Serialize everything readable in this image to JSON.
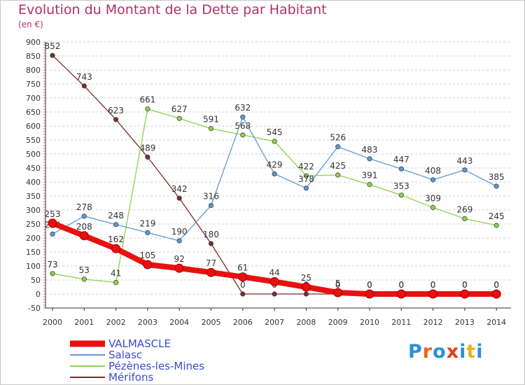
{
  "title": "Evolution du Montant de la Dette par Habitant",
  "subtitle": "(en €)",
  "logo": {
    "text": "Proxiti",
    "colors": [
      "#2a8fd8",
      "#e9651c",
      "#2a8fd8",
      "#e93b1c",
      "#2a8fd8",
      "#f0b020",
      "#2a8fd8"
    ]
  },
  "chart_data": {
    "type": "line",
    "x": [
      "2000",
      "2001",
      "2002",
      "2003",
      "2004",
      "2005",
      "2006",
      "2007",
      "2008",
      "2009",
      "2010",
      "2011",
      "2012",
      "2013",
      "2014"
    ],
    "ylim": [
      -50,
      900
    ],
    "yticks": [
      -50,
      0,
      50,
      100,
      150,
      200,
      250,
      300,
      350,
      400,
      450,
      500,
      550,
      600,
      650,
      700,
      750,
      800,
      850,
      900
    ],
    "grid": "horizontal-dashed",
    "legend_position": "bottom-left",
    "series": [
      {
        "name": "VALMASCLE",
        "color": "#e81010",
        "values": [
          253,
          208,
          162,
          105,
          92,
          77,
          61,
          44,
          25,
          5,
          0,
          0,
          0,
          0,
          0
        ]
      },
      {
        "name": "Salasc",
        "color": "#5b9bd5",
        "values": [
          214,
          278,
          248,
          219,
          190,
          316,
          632,
          429,
          378,
          526,
          483,
          447,
          408,
          443,
          385
        ]
      },
      {
        "name": "Pézènes-les-Mines",
        "color": "#8fd24a",
        "values": [
          73,
          53,
          41,
          661,
          627,
          591,
          568,
          545,
          422,
          425,
          391,
          353,
          309,
          269,
          245
        ]
      },
      {
        "name": "Mérifons",
        "color": "#7a2b2b",
        "values": [
          852,
          743,
          623,
          489,
          342,
          180,
          0,
          0,
          0,
          0,
          0,
          0,
          0,
          0,
          0
        ]
      }
    ],
    "data_labels": {
      "VALMASCLE": [
        "253",
        "208",
        "162",
        "105",
        "92",
        "77",
        "61",
        "44",
        "25",
        "5",
        "0",
        "0",
        "0",
        "0",
        "0"
      ],
      "Salasc": [
        "214",
        "278",
        "248",
        "219",
        "190",
        "316",
        "632",
        "429",
        "378",
        "526",
        "483",
        "447",
        "408",
        "443",
        "385"
      ],
      "Pézènes-les-Mines": [
        "73",
        "53",
        "41",
        "661",
        "627",
        "591",
        "568",
        "545",
        "422",
        "425",
        "391",
        "353",
        "309",
        "269",
        "245"
      ],
      "Mérifons": [
        "852",
        "743",
        "623",
        "489",
        "342",
        "180",
        "0",
        "0",
        "0",
        "0",
        "0",
        "0",
        "0",
        "0",
        "0"
      ]
    }
  }
}
